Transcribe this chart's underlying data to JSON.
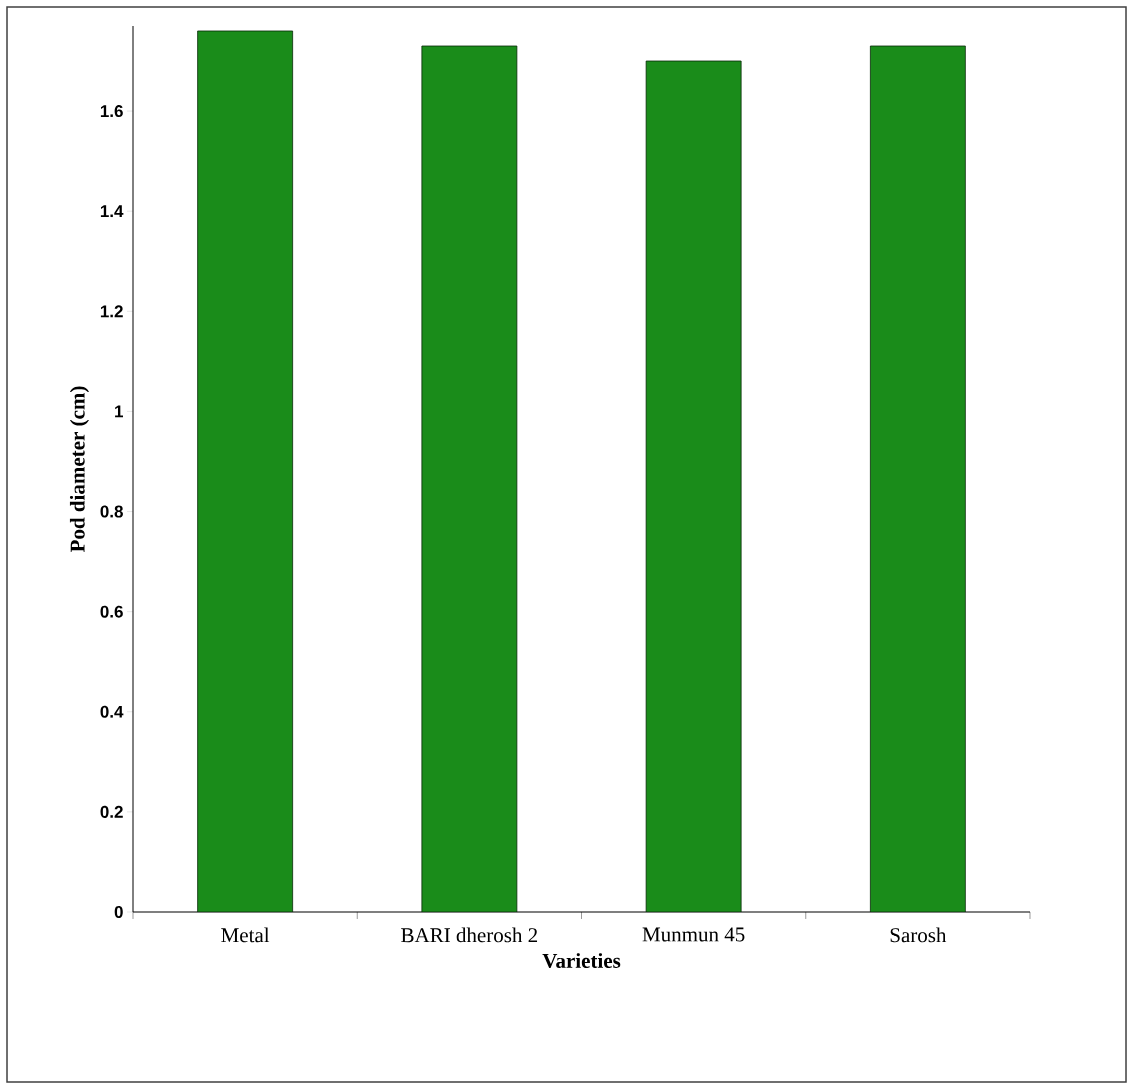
{
  "chart_data": {
    "type": "bar",
    "xlabel": "Varieties",
    "ylabel": "Pod diameter (cm)",
    "categories": [
      "Metal",
      "BARI dherosh 2",
      "Munmun 45",
      "Sarosh"
    ],
    "values": [
      1.76,
      1.73,
      1.7,
      1.73
    ],
    "color": "#1a8c1a",
    "ylim": [
      0,
      1.77
    ],
    "yticks": [
      0,
      0.2,
      0.4,
      0.6,
      0.8,
      1,
      1.2,
      1.4,
      1.6
    ]
  }
}
